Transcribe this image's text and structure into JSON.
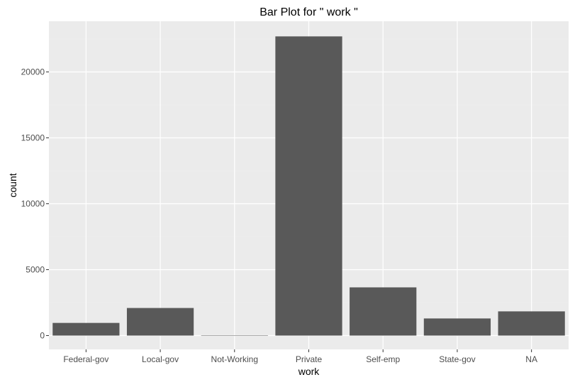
{
  "chart_data": {
    "type": "bar",
    "title": "Bar Plot for \" work \"",
    "xlabel": "work",
    "ylabel": "count",
    "categories": [
      "Federal-gov",
      "Local-gov",
      "Not-Working",
      "Private",
      "Self-emp",
      "State-gov",
      "NA"
    ],
    "values": [
      960,
      2093,
      21,
      22696,
      3657,
      1298,
      1836
    ],
    "ylim": [
      0,
      23800
    ],
    "yticks": [
      0,
      5000,
      10000,
      15000,
      20000
    ],
    "ytick_labels": [
      "0",
      "5000",
      "10000",
      "15000",
      "20000"
    ],
    "grid": true,
    "colors": {
      "bar": "#595959",
      "panel": "#ebebeb",
      "grid_major": "#ffffff",
      "grid_minor": "#f2f2f2"
    }
  }
}
